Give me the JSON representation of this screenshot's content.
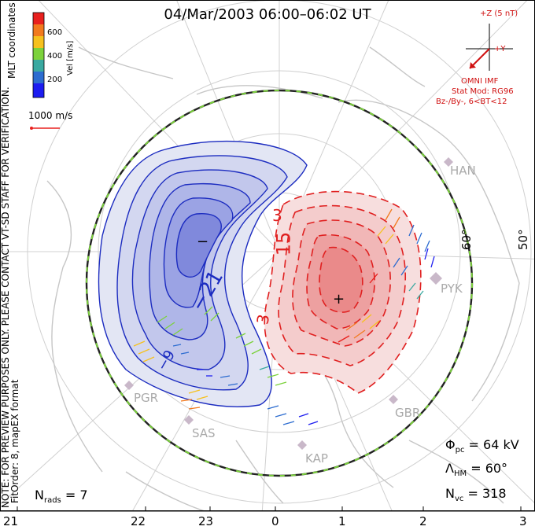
{
  "title": "04/Mar/2003 06:00–06:02 UT",
  "side_notes": {
    "coords": "MLT coordinates",
    "preview": "NOTE: FOR PREVIEW PURPOSES ONLY. PLEASE CONTACT VT-SD STAFF FOR VERIFICATION.",
    "fit": "FitOrder: 8, mapEX format"
  },
  "colorbar": {
    "label": "Vel [m/s]",
    "ticks": [
      "600",
      "400",
      "200"
    ],
    "colors": [
      "#e8201e",
      "#f27a1e",
      "#f6c11e",
      "#7cd23c",
      "#3aa9a0",
      "#2c6cd0",
      "#1c1cf0"
    ]
  },
  "scale_vector": "1000 m/s",
  "imf": {
    "z_label": "+Z (5 nT)",
    "y_label": "+Y",
    "source": "OMNI IMF",
    "model": "Stat Mod: RG96",
    "condition": "Bz-/By-, 6<BT<12"
  },
  "contour_labels": {
    "neg_min": "−",
    "neg_value": "−21",
    "neg_outer": "−9",
    "pos_max": "+",
    "pos_value": "15",
    "pos_inner": "3",
    "pos_outer": "3"
  },
  "latitude_labels": [
    "60°",
    "50°"
  ],
  "sites": [
    "HAN",
    "PYK",
    "PGR",
    "SAS",
    "KAP",
    "GBR"
  ],
  "stats": {
    "phi_symbol": "Φ",
    "phi_sub": "pc",
    "phi_value": " = 64 kV",
    "lambda_symbol": "Λ",
    "lambda_sub": "HM",
    "lambda_value": " = 60°",
    "nvc_symbol": "N",
    "nvc_sub": "vc",
    "nvc_value": " = 318",
    "nrads_symbol": "N",
    "nrads_sub": "rads",
    "nrads_value": " = 7"
  },
  "mlt_labels": [
    "21",
    "22",
    "23",
    "0",
    "1",
    "2",
    "3"
  ],
  "colors": {
    "negative": "#1c2cc0",
    "positive": "#e02020",
    "imf": "#d01010"
  }
}
